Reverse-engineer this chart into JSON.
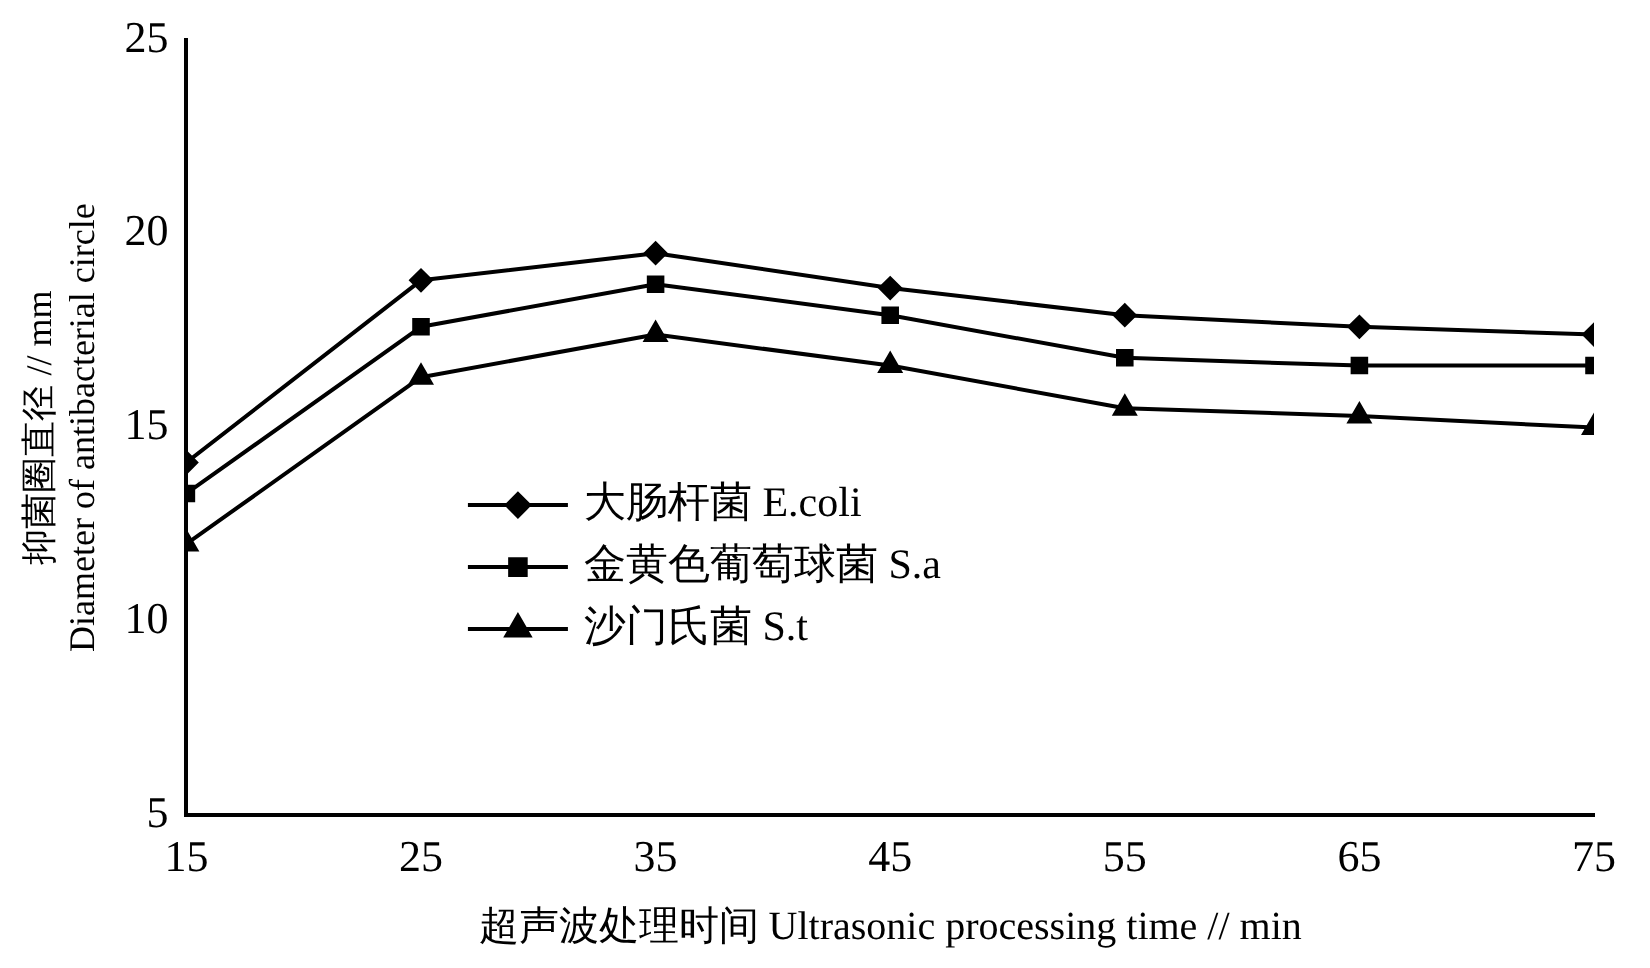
{
  "chart_data": {
    "type": "line",
    "xlabel": "超声波处理时间 Ultrasonic processing time // min",
    "ylabel": "抑菌圈直径 // mm\nDiameter of antibacterial circle",
    "x": [
      15,
      25,
      35,
      45,
      55,
      65,
      75
    ],
    "series": [
      {
        "name": "大肠杆菌 E.coli",
        "color": "#000000",
        "marker": "diamond",
        "values": [
          14.1,
          18.8,
          19.5,
          18.6,
          17.9,
          17.6,
          17.4
        ]
      },
      {
        "name": "金黄色葡萄球菌 S.a",
        "color": "#000000",
        "marker": "square",
        "values": [
          13.3,
          17.6,
          18.7,
          17.9,
          16.8,
          16.6,
          16.6
        ]
      },
      {
        "name": "沙门氏菌 S.t",
        "color": "#000000",
        "marker": "triangle",
        "values": [
          12.0,
          16.3,
          17.4,
          16.6,
          15.5,
          15.3,
          15.0
        ]
      }
    ],
    "xlim": [
      15,
      75
    ],
    "xticks": [
      15,
      25,
      35,
      45,
      55,
      65,
      75
    ],
    "ylim": [
      5,
      25
    ],
    "yticks": [
      5,
      10,
      15,
      20,
      25
    ],
    "grid": false,
    "legend": "bottom left",
    "line_style": "solid"
  }
}
